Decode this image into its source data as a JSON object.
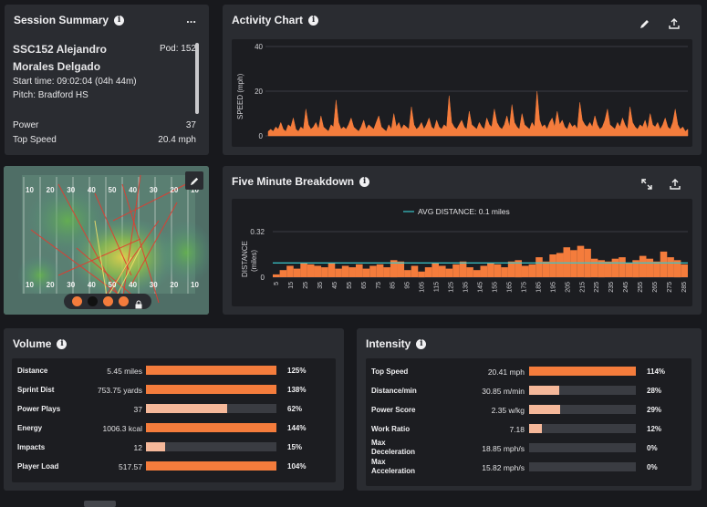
{
  "session_summary": {
    "title": "Session Summary",
    "menu_label": "...",
    "athlete_name_line1": "SSC152 Alejandro",
    "athlete_name_line2": "Morales Delgado",
    "pod": "Pod: 152",
    "start_time": "Start time: 09:02:04 (04h 44m)",
    "pitch": "Pitch: Bradford HS",
    "power_label": "Power",
    "power_value": "37",
    "top_speed_label": "Top Speed",
    "top_speed_value": "20.4 mph"
  },
  "activity_chart": {
    "title": "Activity Chart",
    "ylabel": "SPEED (mph)",
    "yticks": [
      "40",
      "20",
      "0"
    ]
  },
  "five_minute": {
    "title": "Five Minute Breakdown",
    "legend": "AVG DISTANCE: 0.1 miles",
    "ylabel_line1": "DISTANCE",
    "ylabel_line2": "(miles)",
    "yticks": [
      "0.32",
      "0"
    ],
    "xticks": [
      "5",
      "15",
      "25",
      "35",
      "45",
      "55",
      "65",
      "75",
      "85",
      "95",
      "105",
      "115",
      "125",
      "135",
      "145",
      "155",
      "165",
      "175",
      "185",
      "195",
      "205",
      "215",
      "225",
      "235",
      "245",
      "255",
      "265",
      "275",
      "285"
    ]
  },
  "volume": {
    "title": "Volume",
    "rows": [
      {
        "label": "Distance",
        "value": "5.45 miles",
        "pct": "125%",
        "fill": 1.0,
        "color": "#f47c3c"
      },
      {
        "label": "Sprint Dist",
        "value": "753.75 yards",
        "pct": "138%",
        "fill": 1.0,
        "color": "#f47c3c"
      },
      {
        "label": "Power Plays",
        "value": "37",
        "pct": "62%",
        "fill": 0.62,
        "color": "#f5b89a"
      },
      {
        "label": "Energy",
        "value": "1006.3 kcal",
        "pct": "144%",
        "fill": 1.0,
        "color": "#f47c3c"
      },
      {
        "label": "Impacts",
        "value": "12",
        "pct": "15%",
        "fill": 0.15,
        "color": "#f5b89a"
      },
      {
        "label": "Player Load",
        "value": "517.57",
        "pct": "104%",
        "fill": 1.0,
        "color": "#f47c3c"
      }
    ]
  },
  "intensity": {
    "title": "Intensity",
    "rows": [
      {
        "label": "Top Speed",
        "label2": "",
        "value": "20.41 mph",
        "pct": "114%",
        "fill": 1.0,
        "color": "#f47c3c"
      },
      {
        "label": "Distance/min",
        "label2": "",
        "value": "30.85 m/min",
        "pct": "28%",
        "fill": 0.28,
        "color": "#f5b89a"
      },
      {
        "label": "Power Score",
        "label2": "",
        "value": "2.35 w/kg",
        "pct": "29%",
        "fill": 0.29,
        "color": "#f5b89a"
      },
      {
        "label": "Work Ratio",
        "label2": "",
        "value": "7.18",
        "pct": "12%",
        "fill": 0.12,
        "color": "#f5b89a"
      },
      {
        "label": "Max",
        "label2": "Deceleration",
        "value": "18.85 mph/s",
        "pct": "0%",
        "fill": 0,
        "color": "#f47c3c"
      },
      {
        "label": "Max",
        "label2": "Acceleration",
        "value": "15.82 mph/s",
        "pct": "0%",
        "fill": 0,
        "color": "#f47c3c"
      }
    ]
  },
  "heatmap": {
    "yard_labels_top": [
      "10",
      "20",
      "30",
      "40",
      "50",
      "40",
      "30",
      "20",
      "10"
    ],
    "yard_labels_bottom": [
      "10",
      "20",
      "30",
      "40",
      "50",
      "40",
      "30",
      "20",
      "10"
    ]
  },
  "chart_data": [
    {
      "type": "area",
      "title": "Activity Chart",
      "ylabel": "SPEED (mph)",
      "ylim": [
        0,
        40
      ],
      "values": [
        2,
        3,
        2,
        4,
        3,
        6,
        3,
        2,
        5,
        4,
        8,
        3,
        2,
        4,
        3,
        12,
        5,
        3,
        4,
        6,
        3,
        9,
        4,
        3,
        2,
        5,
        4,
        16,
        6,
        3,
        4,
        3,
        5,
        8,
        4,
        3,
        2,
        4,
        7,
        3,
        5,
        4,
        3,
        6,
        9,
        4,
        3,
        2,
        5,
        3,
        10,
        4,
        6,
        3,
        5,
        4,
        3,
        13,
        5,
        3,
        4,
        6,
        3,
        5,
        8,
        4,
        3,
        7,
        4,
        3,
        5,
        4,
        18,
        6,
        4,
        3,
        5,
        7,
        4,
        3,
        11,
        5,
        4,
        3,
        6,
        4,
        3,
        8,
        5,
        4,
        12,
        6,
        4,
        3,
        5,
        9,
        4,
        14,
        6,
        4,
        3,
        10,
        5,
        4,
        3,
        6,
        4,
        20,
        7,
        4,
        5,
        3,
        6,
        8,
        4,
        11,
        5,
        7,
        4,
        3,
        6,
        4,
        5,
        3,
        15,
        7,
        5,
        4,
        6,
        4,
        9,
        5,
        3,
        4,
        7,
        12,
        5,
        4,
        3,
        6,
        4,
        8,
        5,
        3,
        13,
        6,
        4,
        3,
        5,
        4,
        7,
        3,
        10,
        5,
        4,
        6,
        3,
        5,
        8,
        4,
        3,
        6,
        12,
        5,
        3,
        4,
        2,
        3
      ]
    },
    {
      "type": "bar",
      "title": "Five Minute Breakdown",
      "ylabel": "DISTANCE (miles)",
      "ylim": [
        0,
        0.32
      ],
      "avg_line": 0.1,
      "values": [
        0.02,
        0.05,
        0.08,
        0.06,
        0.1,
        0.09,
        0.08,
        0.07,
        0.1,
        0.06,
        0.08,
        0.07,
        0.09,
        0.06,
        0.08,
        0.09,
        0.07,
        0.12,
        0.11,
        0.05,
        0.08,
        0.04,
        0.07,
        0.1,
        0.08,
        0.06,
        0.09,
        0.11,
        0.07,
        0.05,
        0.08,
        0.1,
        0.09,
        0.07,
        0.11,
        0.12,
        0.08,
        0.09,
        0.14,
        0.11,
        0.16,
        0.17,
        0.21,
        0.19,
        0.22,
        0.2,
        0.13,
        0.12,
        0.11,
        0.13,
        0.14,
        0.1,
        0.12,
        0.15,
        0.13,
        0.11,
        0.18,
        0.14,
        0.12,
        0.09
      ]
    }
  ]
}
